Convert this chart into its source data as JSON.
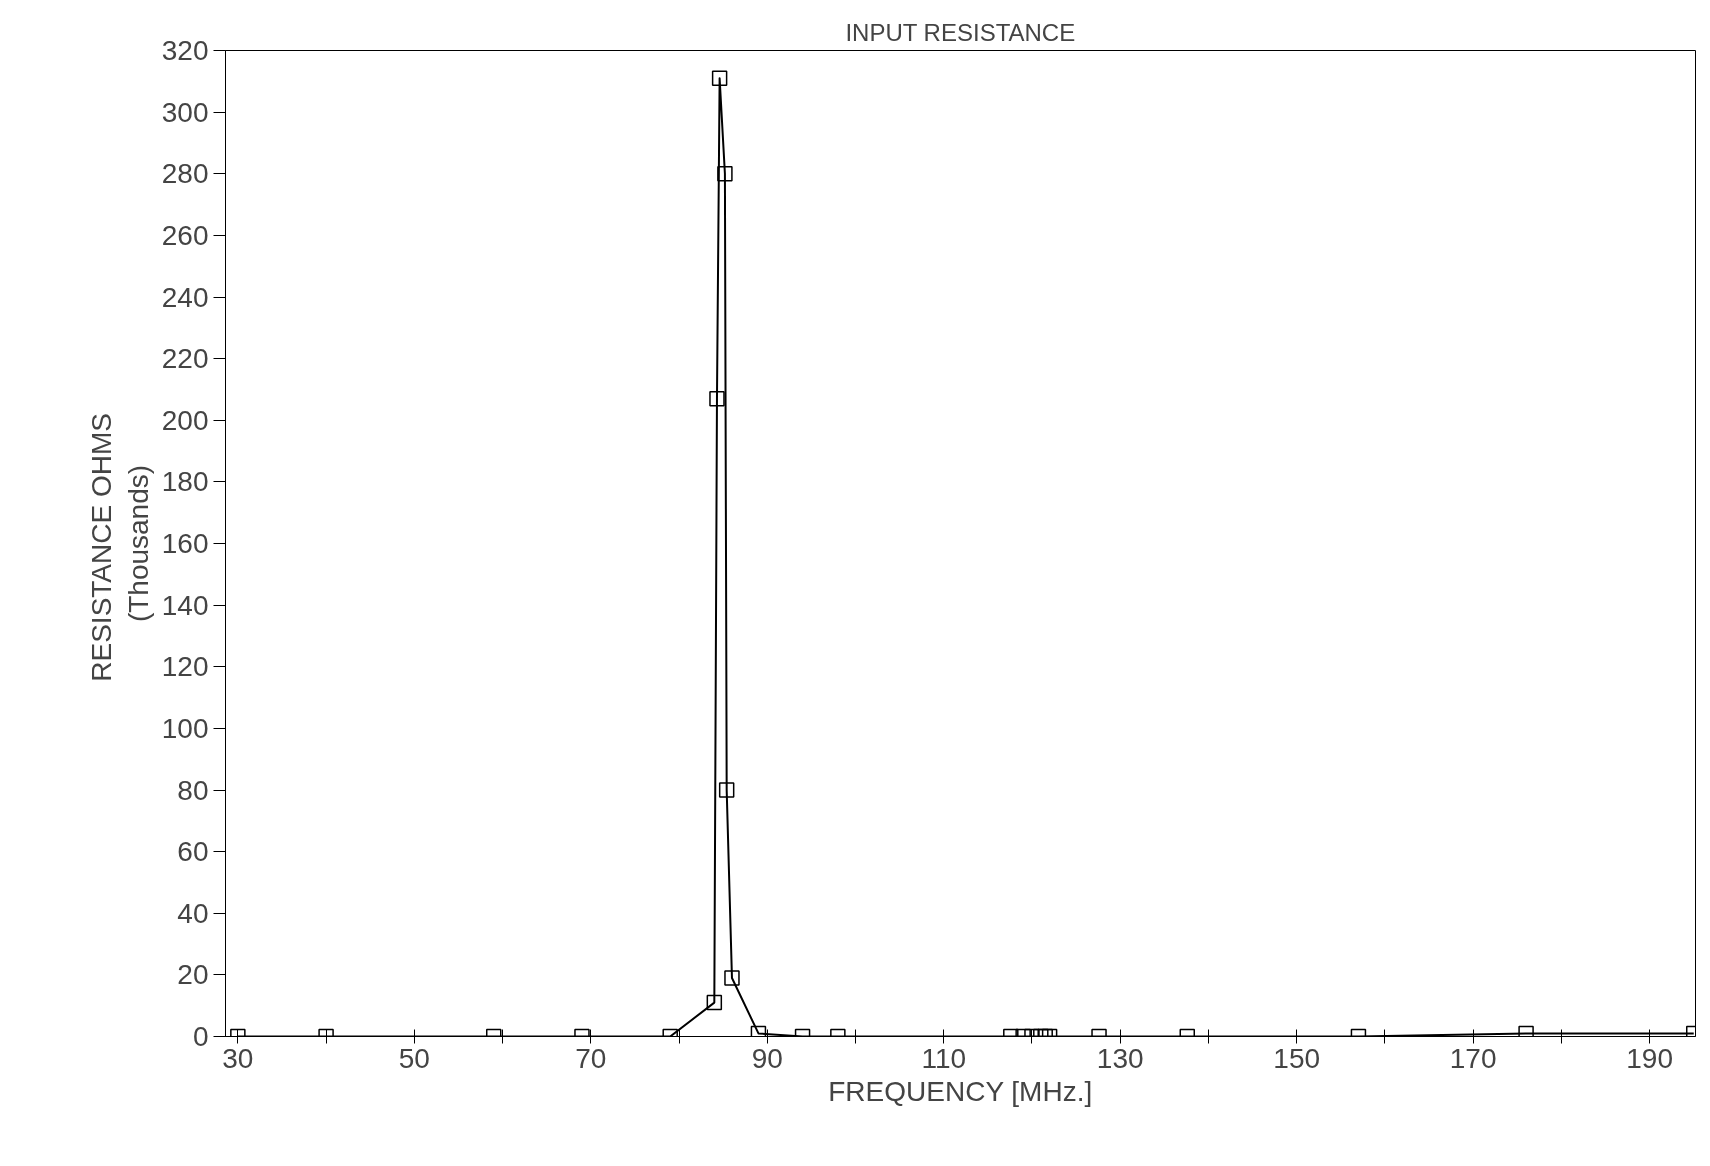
{
  "chart_data": {
    "type": "line",
    "title": "INPUT RESISTANCE",
    "xlabel": "FREQUENCY [MHz.]",
    "ylabel": "RESISTANCE  OHMS\n(Thousands)",
    "x": [
      30,
      40,
      59,
      69,
      79,
      84,
      84.3,
      84.6,
      85.2,
      85.4,
      86,
      89,
      94,
      98,
      117.6,
      119,
      120,
      121,
      121.5,
      122,
      127.6,
      137.6,
      157,
      176,
      195
    ],
    "values": [
      0,
      0,
      0,
      0,
      0,
      11,
      207,
      311,
      280,
      80,
      19,
      1,
      0,
      0,
      0,
      0,
      0,
      0,
      0,
      0,
      0,
      0,
      0,
      1,
      1
    ],
    "color": "#000000",
    "marker": "square",
    "line_style": "solid",
    "grid": false,
    "xlim": [
      28.6,
      195.2
    ],
    "ylim": [
      0,
      320
    ],
    "xticks": [
      30,
      50,
      70,
      90,
      110,
      130,
      150,
      170,
      190
    ],
    "yticks": [
      0,
      20,
      40,
      60,
      80,
      100,
      120,
      140,
      160,
      180,
      200,
      220,
      240,
      260,
      280,
      300,
      320
    ]
  }
}
